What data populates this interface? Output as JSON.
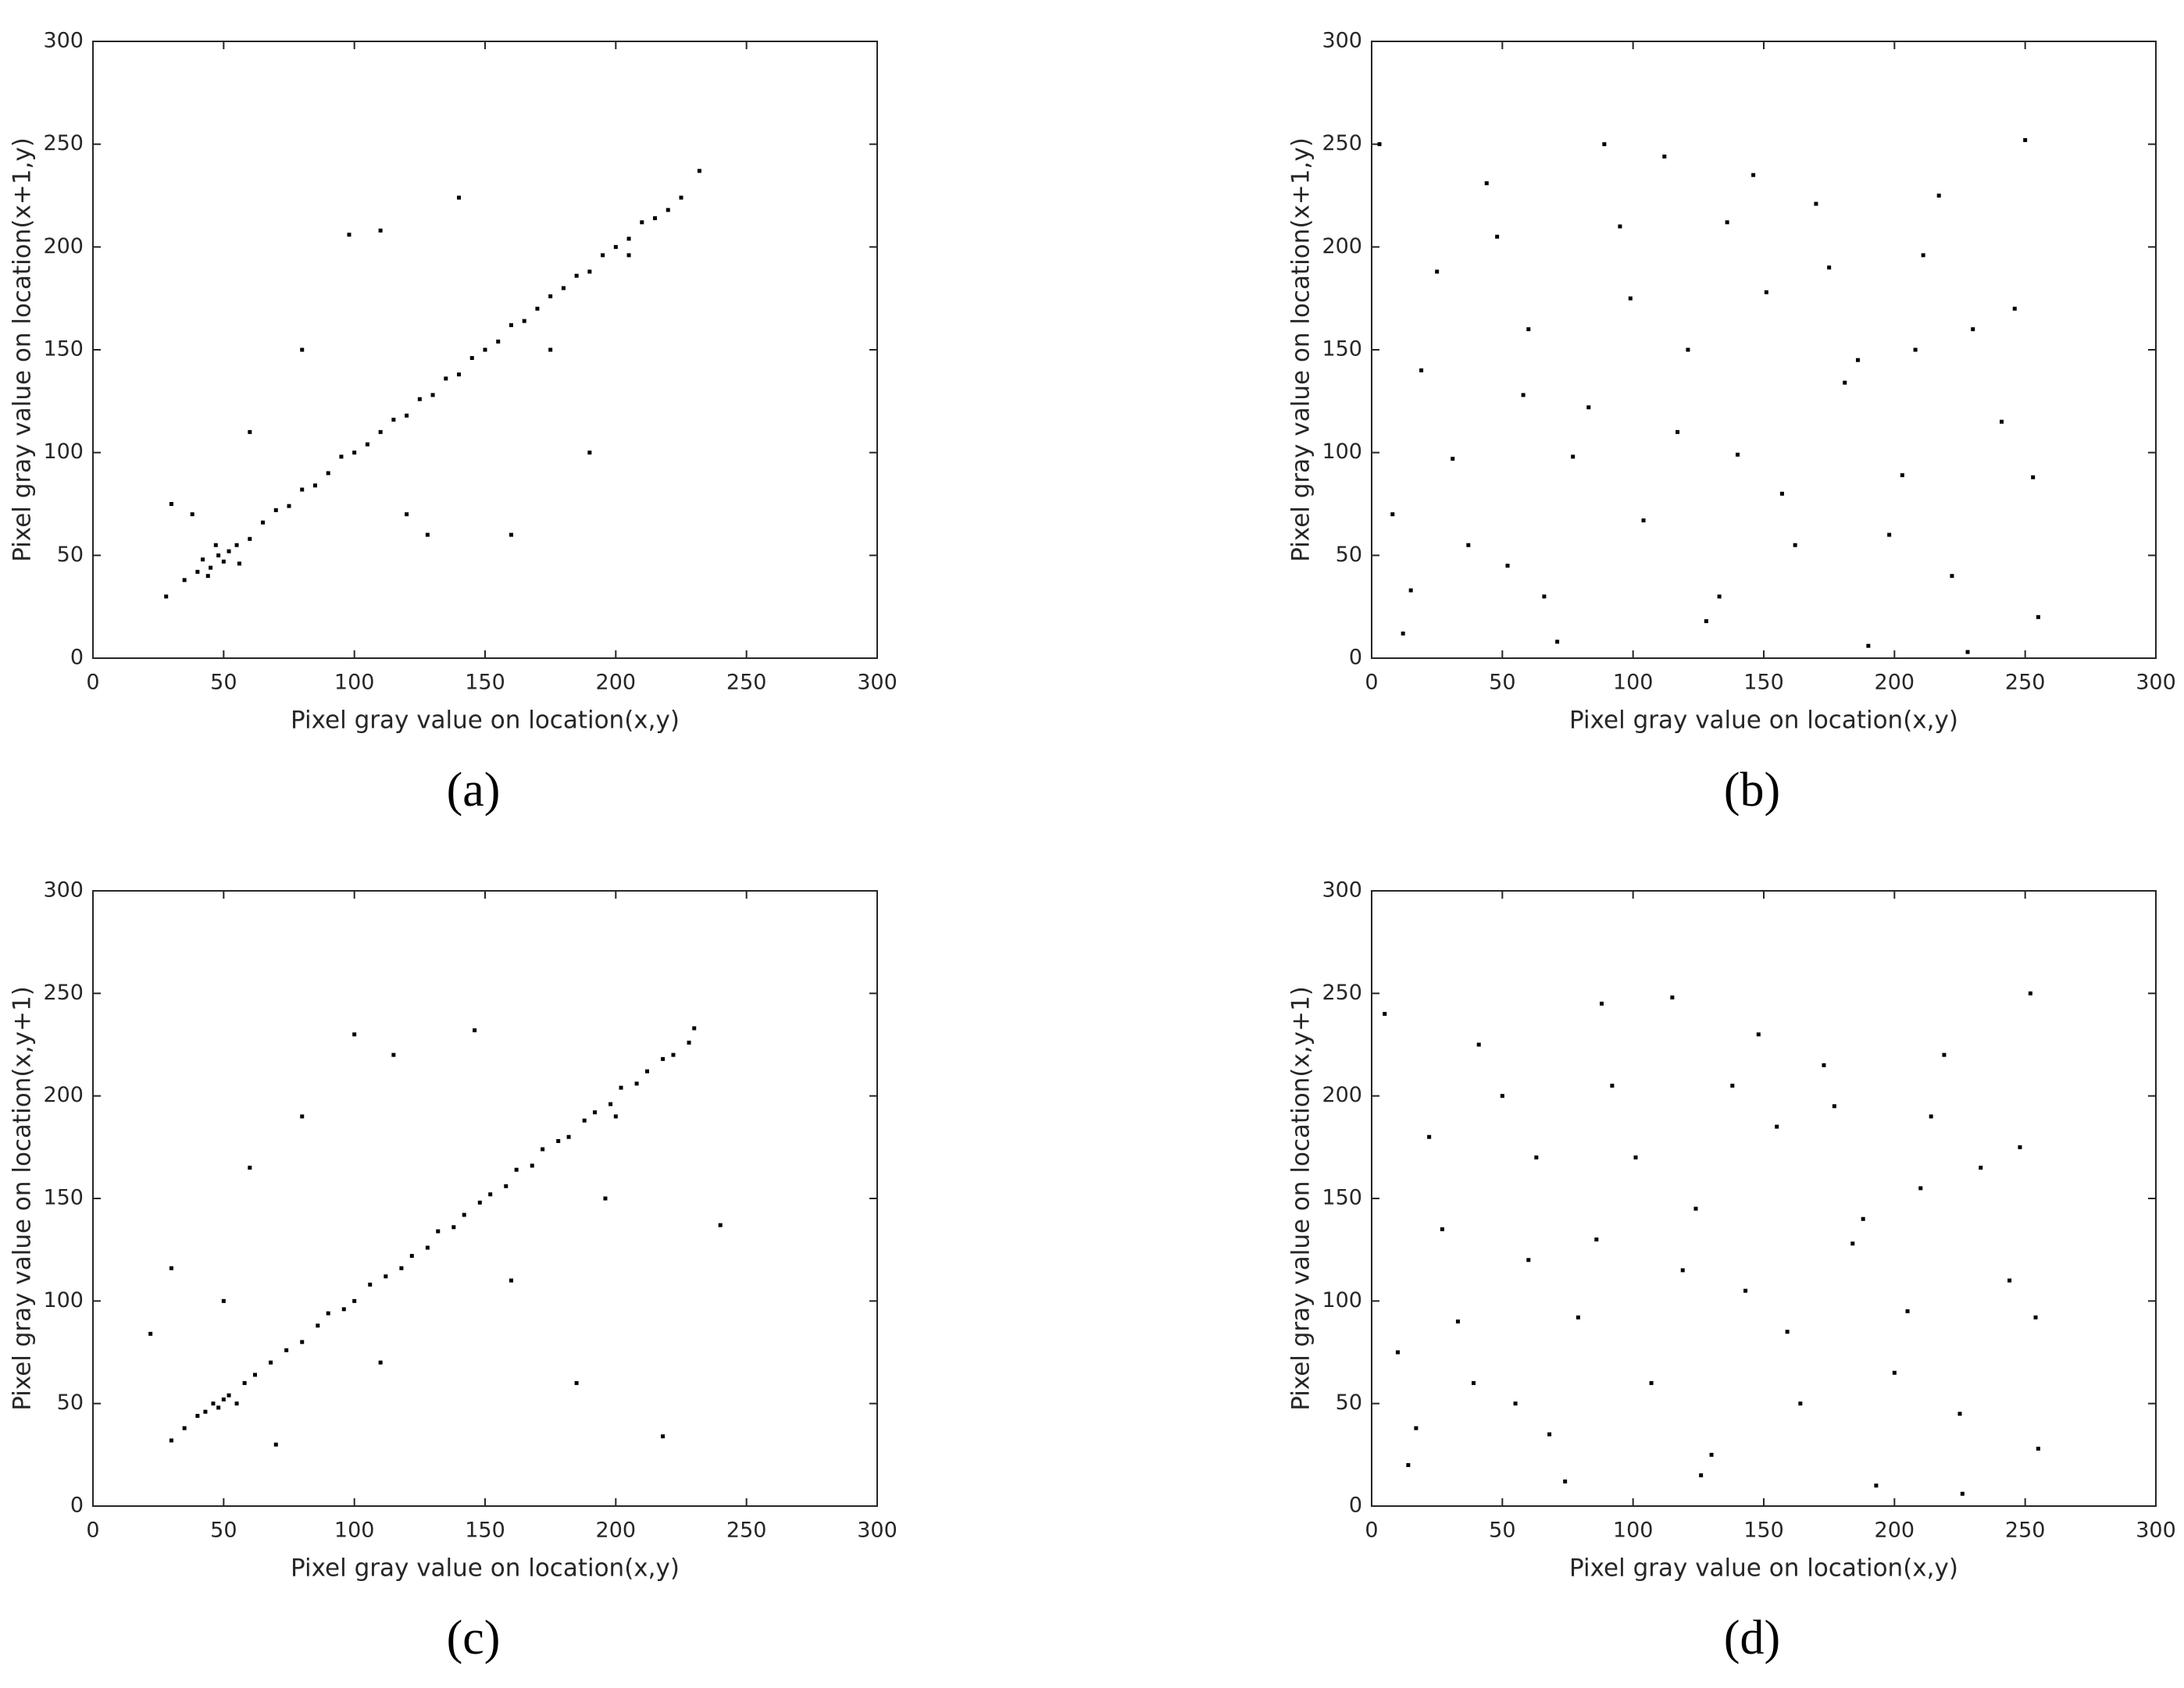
{
  "chart_data": [
    {
      "type": "scatter",
      "label": "(a)",
      "xlabel": "Pixel gray value on location(x,y)",
      "ylabel": "Pixel gray value on location(x+1,y)",
      "color": "#000000",
      "xlim": [
        0,
        300
      ],
      "ylim": [
        0,
        300
      ],
      "xticks": [
        0,
        50,
        100,
        150,
        200,
        250,
        300
      ],
      "yticks": [
        0,
        50,
        100,
        150,
        200,
        250,
        300
      ],
      "x": [
        28,
        35,
        40,
        42,
        45,
        48,
        50,
        52,
        55,
        60,
        65,
        70,
        75,
        80,
        85,
        90,
        95,
        100,
        105,
        110,
        115,
        120,
        125,
        130,
        135,
        140,
        145,
        150,
        155,
        160,
        165,
        170,
        175,
        180,
        185,
        190,
        195,
        200,
        205,
        210,
        215,
        220,
        225,
        60,
        80,
        120,
        140,
        160,
        190,
        232,
        44,
        38,
        47,
        56,
        30,
        98,
        128,
        175,
        205,
        110
      ],
      "y": [
        30,
        38,
        42,
        48,
        44,
        50,
        47,
        52,
        55,
        58,
        66,
        72,
        74,
        82,
        84,
        90,
        98,
        100,
        104,
        110,
        116,
        118,
        126,
        128,
        136,
        138,
        146,
        150,
        154,
        162,
        164,
        170,
        176,
        180,
        186,
        188,
        196,
        200,
        204,
        212,
        214,
        218,
        224,
        110,
        150,
        70,
        224,
        60,
        100,
        237,
        40,
        70,
        55,
        46,
        75,
        206,
        60,
        150,
        196,
        208
      ]
    },
    {
      "type": "scatter",
      "label": "(b)",
      "xlabel": "Pixel gray value on location(x,y)",
      "ylabel": "Pixel gray value on location(x+1,y)",
      "color": "#000000",
      "xlim": [
        0,
        300
      ],
      "ylim": [
        0,
        300
      ],
      "xticks": [
        0,
        50,
        100,
        150,
        200,
        250,
        300
      ],
      "yticks": [
        0,
        50,
        100,
        150,
        200,
        250,
        300
      ],
      "x": [
        3,
        12,
        25,
        31,
        44,
        52,
        60,
        71,
        83,
        95,
        104,
        112,
        121,
        133,
        140,
        151,
        162,
        170,
        181,
        190,
        203,
        211,
        222,
        230,
        241,
        250,
        255,
        8,
        19,
        37,
        48,
        66,
        77,
        89,
        99,
        117,
        128,
        146,
        157,
        175,
        186,
        198,
        217,
        228,
        246,
        253,
        15,
        58,
        136,
        208
      ],
      "y": [
        250,
        12,
        188,
        97,
        231,
        45,
        160,
        8,
        122,
        210,
        67,
        244,
        150,
        30,
        99,
        178,
        55,
        221,
        134,
        6,
        89,
        196,
        40,
        160,
        115,
        252,
        20,
        70,
        140,
        55,
        205,
        30,
        98,
        250,
        175,
        110,
        18,
        235,
        80,
        190,
        145,
        60,
        225,
        3,
        170,
        88,
        33,
        128,
        212,
        150
      ]
    },
    {
      "type": "scatter",
      "label": "(c)",
      "xlabel": "Pixel gray value on location(x,y)",
      "ylabel": "Pixel gray value on location(x,y+1)",
      "color": "#000000",
      "xlim": [
        0,
        300
      ],
      "ylim": [
        0,
        300
      ],
      "xticks": [
        0,
        50,
        100,
        150,
        200,
        250,
        300
      ],
      "yticks": [
        0,
        50,
        100,
        150,
        200,
        250,
        300
      ],
      "x": [
        30,
        35,
        40,
        43,
        46,
        48,
        50,
        52,
        55,
        58,
        62,
        68,
        74,
        80,
        86,
        90,
        96,
        100,
        106,
        112,
        118,
        122,
        128,
        132,
        138,
        142,
        148,
        152,
        158,
        162,
        168,
        172,
        178,
        182,
        188,
        192,
        198,
        202,
        208,
        212,
        218,
        222,
        228,
        22,
        30,
        60,
        80,
        100,
        115,
        146,
        160,
        200,
        230,
        240,
        218,
        50,
        70,
        110,
        185,
        196
      ],
      "y": [
        32,
        38,
        44,
        46,
        50,
        48,
        52,
        54,
        50,
        60,
        64,
        70,
        76,
        80,
        88,
        94,
        96,
        100,
        108,
        112,
        116,
        122,
        126,
        134,
        136,
        142,
        148,
        152,
        156,
        164,
        166,
        174,
        178,
        180,
        188,
        192,
        196,
        204,
        206,
        212,
        218,
        220,
        226,
        84,
        116,
        165,
        190,
        230,
        220,
        232,
        110,
        190,
        233,
        137,
        34,
        100,
        30,
        70,
        60,
        150
      ]
    },
    {
      "type": "scatter",
      "label": "(d)",
      "xlabel": "Pixel gray value on location(x,y)",
      "ylabel": "Pixel gray value on location(x,y+1)",
      "color": "#000000",
      "xlim": [
        0,
        300
      ],
      "ylim": [
        0,
        300
      ],
      "xticks": [
        0,
        50,
        100,
        150,
        200,
        250,
        300
      ],
      "yticks": [
        0,
        50,
        100,
        150,
        200,
        250,
        300
      ],
      "x": [
        5,
        14,
        22,
        33,
        41,
        55,
        63,
        74,
        86,
        92,
        107,
        115,
        124,
        130,
        143,
        155,
        164,
        173,
        184,
        193,
        205,
        214,
        225,
        233,
        244,
        252,
        255,
        10,
        27,
        39,
        50,
        68,
        79,
        88,
        101,
        119,
        126,
        148,
        159,
        177,
        188,
        200,
        219,
        226,
        248,
        254,
        17,
        60,
        138,
        210
      ],
      "y": [
        240,
        20,
        180,
        90,
        225,
        50,
        170,
        12,
        130,
        205,
        60,
        248,
        145,
        25,
        105,
        185,
        50,
        215,
        128,
        10,
        95,
        190,
        45,
        165,
        110,
        250,
        28,
        75,
        135,
        60,
        200,
        35,
        92,
        245,
        170,
        115,
        15,
        230,
        85,
        195,
        140,
        65,
        220,
        6,
        175,
        92,
        38,
        120,
        205,
        155
      ]
    }
  ]
}
